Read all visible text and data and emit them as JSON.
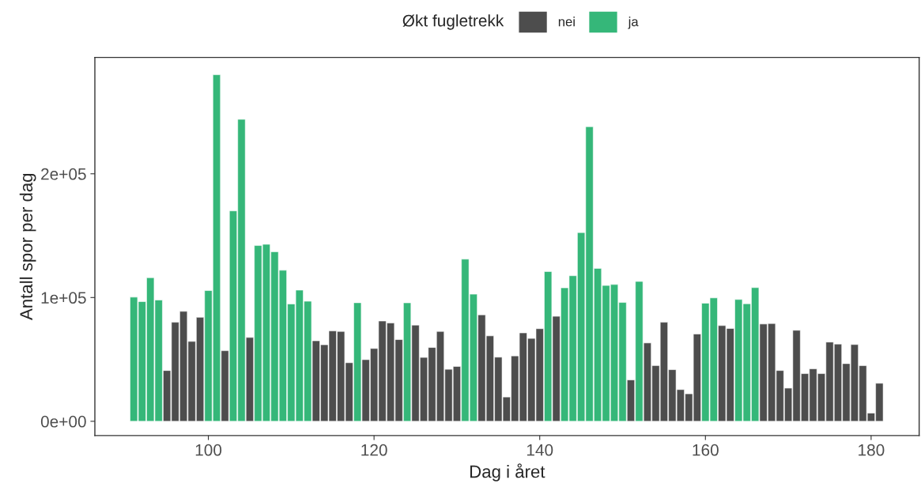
{
  "chart_data": {
    "type": "bar",
    "xlabel": "Dag i året",
    "ylabel": "Antall spor per dag",
    "legend_title": "Økt fugletrekk",
    "legend": "top",
    "grid": false,
    "x": [
      91,
      92,
      93,
      94,
      95,
      96,
      97,
      98,
      99,
      100,
      101,
      102,
      103,
      104,
      105,
      106,
      107,
      108,
      109,
      110,
      111,
      112,
      113,
      114,
      115,
      116,
      117,
      118,
      119,
      120,
      121,
      122,
      123,
      124,
      125,
      126,
      127,
      128,
      129,
      130,
      131,
      132,
      133,
      134,
      135,
      136,
      137,
      138,
      139,
      140,
      141,
      142,
      143,
      144,
      145,
      146,
      147,
      148,
      149,
      150,
      151,
      152,
      153,
      154,
      155,
      156,
      157,
      158,
      159,
      160,
      161,
      162,
      163,
      164,
      165,
      166,
      167,
      168,
      169,
      170,
      171,
      172,
      173,
      174,
      175,
      176,
      177,
      178,
      179,
      180,
      181
    ],
    "series": [
      {
        "name": "nei",
        "color": "#4d4d4d",
        "values": [
          null,
          null,
          null,
          null,
          41000,
          80000,
          88800,
          64500,
          84000,
          null,
          null,
          57000,
          null,
          null,
          67700,
          null,
          null,
          null,
          null,
          null,
          null,
          null,
          65000,
          61800,
          73000,
          72600,
          47300,
          null,
          49800,
          58800,
          81000,
          79400,
          66000,
          null,
          77700,
          51600,
          59600,
          72600,
          42000,
          44300,
          null,
          null,
          86000,
          69000,
          51800,
          19600,
          52800,
          71400,
          66900,
          74800,
          null,
          84800,
          null,
          null,
          null,
          null,
          null,
          null,
          null,
          null,
          33400,
          null,
          63300,
          45000,
          80000,
          41700,
          25600,
          22200,
          70500,
          null,
          null,
          77300,
          75000,
          null,
          null,
          null,
          78600,
          79000,
          41000,
          26800,
          73500,
          38500,
          42400,
          38500,
          64000,
          62400,
          46600,
          62000,
          45000,
          6600,
          30700
        ]
      },
      {
        "name": "ja",
        "color": "#35b779",
        "values": [
          100300,
          96700,
          116000,
          98000,
          null,
          null,
          null,
          null,
          null,
          105600,
          280000,
          null,
          170000,
          244000,
          null,
          142000,
          143000,
          137000,
          122000,
          94800,
          106000,
          97000,
          null,
          null,
          null,
          null,
          null,
          95800,
          null,
          null,
          null,
          null,
          null,
          95700,
          null,
          null,
          null,
          null,
          null,
          null,
          131000,
          102700,
          null,
          null,
          null,
          null,
          null,
          null,
          null,
          null,
          121000,
          null,
          107800,
          117600,
          152500,
          238000,
          123500,
          109700,
          110500,
          96000,
          null,
          113000,
          null,
          null,
          null,
          null,
          null,
          null,
          null,
          95400,
          99700,
          null,
          null,
          98400,
          95000,
          108000,
          null,
          null,
          null,
          null,
          null,
          null,
          null,
          null,
          null,
          null,
          null,
          null,
          null,
          null,
          null
        ]
      }
    ],
    "xlim": [
      86.3,
      185.8
    ],
    "xticks": [
      100,
      120,
      140,
      160,
      180
    ],
    "ylim": [
      -11500,
      294000
    ],
    "yticks": [
      {
        "value": 0,
        "label": "0e+00"
      },
      {
        "value": 100000,
        "label": "1e+05"
      },
      {
        "value": 200000,
        "label": "2e+05"
      }
    ]
  }
}
